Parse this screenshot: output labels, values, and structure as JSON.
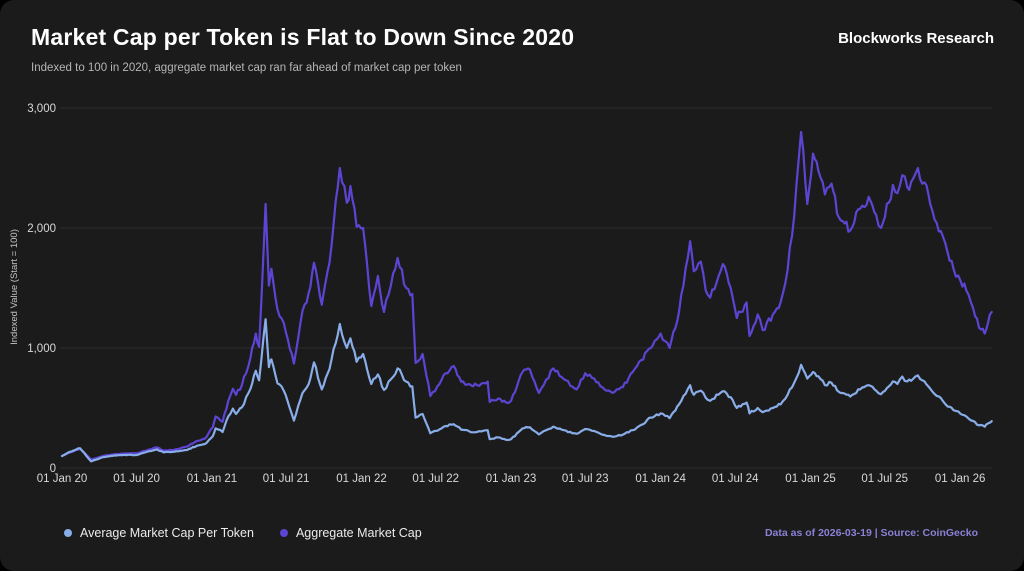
{
  "header": {
    "title": "Market Cap per Token is Flat to Down Since 2020",
    "subtitle": "Indexed to 100 in 2020, aggregate market cap ran far ahead of market cap per token",
    "brand": "Blockworks Research"
  },
  "footer": {
    "source_note": "Data as of 2026-03-19 | Source: CoinGecko"
  },
  "colors": {
    "background": "#1c1b1b",
    "title_text": "#ffffff",
    "subtitle_text": "#b5b5b5",
    "axis_text": "#d8d8d8",
    "gridline": "#2e2d2d",
    "average_line": "#88ade8",
    "aggregate_line": "#5d44d3",
    "source_text": "#8a80d6"
  },
  "chart_data": {
    "type": "line",
    "title": "Market Cap per Token is Flat to Down Since 2020",
    "subtitle": "Indexed to 100 in 2020, aggregate market cap ran far ahead of market cap per token",
    "xlabel": "",
    "ylabel": "Indexed Value (Start = 100)",
    "ylim": [
      0,
      3000
    ],
    "grid": "horizontal",
    "legend_position": "bottom-left",
    "yticks": [
      {
        "value": 0,
        "label": "0"
      },
      {
        "value": 1000,
        "label": "1,000"
      },
      {
        "value": 2000,
        "label": "2,000"
      },
      {
        "value": 3000,
        "label": "3,000"
      }
    ],
    "xticks": [
      {
        "date": "2020-01-01",
        "label": "01 Jan 20"
      },
      {
        "date": "2020-07-01",
        "label": "01 Jul 20"
      },
      {
        "date": "2021-01-01",
        "label": "01 Jan 21"
      },
      {
        "date": "2021-07-01",
        "label": "01 Jul 21"
      },
      {
        "date": "2022-01-01",
        "label": "01 Jan 22"
      },
      {
        "date": "2022-07-01",
        "label": "01 Jul 22"
      },
      {
        "date": "2023-01-01",
        "label": "01 Jan 23"
      },
      {
        "date": "2023-07-01",
        "label": "01 Jul 23"
      },
      {
        "date": "2024-01-01",
        "label": "01 Jan 24"
      },
      {
        "date": "2024-07-01",
        "label": "01 Jul 24"
      },
      {
        "date": "2025-01-01",
        "label": "01 Jan 25"
      },
      {
        "date": "2025-07-01",
        "label": "01 Jul 25"
      },
      {
        "date": "2026-01-01",
        "label": "01 Jan 26"
      }
    ],
    "x_dates": [
      "2020-01-01",
      "2020-01-20",
      "2020-02-14",
      "2020-03-12",
      "2020-04-10",
      "2020-05-08",
      "2020-06-01",
      "2020-07-01",
      "2020-08-01",
      "2020-08-20",
      "2020-09-05",
      "2020-10-01",
      "2020-11-01",
      "2020-11-25",
      "2020-12-15",
      "2021-01-03",
      "2021-01-10",
      "2021-01-27",
      "2021-02-10",
      "2021-02-21",
      "2021-03-01",
      "2021-03-15",
      "2021-04-05",
      "2021-04-18",
      "2021-04-26",
      "2021-05-12",
      "2021-05-20",
      "2021-05-26",
      "2021-06-10",
      "2021-06-25",
      "2021-07-20",
      "2021-08-10",
      "2021-08-25",
      "2021-09-07",
      "2021-09-26",
      "2021-10-15",
      "2021-11-09",
      "2021-11-26",
      "2021-12-05",
      "2021-12-20",
      "2022-01-05",
      "2022-01-25",
      "2022-02-10",
      "2022-02-25",
      "2022-03-30",
      "2022-04-20",
      "2022-05-05",
      "2022-05-13",
      "2022-05-30",
      "2022-06-18",
      "2022-07-05",
      "2022-07-25",
      "2022-08-14",
      "2022-09-01",
      "2022-09-21",
      "2022-10-10",
      "2022-11-05",
      "2022-11-10",
      "2022-12-01",
      "2022-12-20",
      "2023-01-01",
      "2023-01-29",
      "2023-02-16",
      "2023-03-10",
      "2023-04-14",
      "2023-05-10",
      "2023-06-10",
      "2023-07-01",
      "2023-07-23",
      "2023-08-17",
      "2023-09-11",
      "2023-10-01",
      "2023-10-25",
      "2023-11-15",
      "2023-12-08",
      "2024-01-01",
      "2024-01-23",
      "2024-02-15",
      "2024-03-13",
      "2024-03-22",
      "2024-04-08",
      "2024-04-20",
      "2024-05-01",
      "2024-06-01",
      "2024-06-20",
      "2024-07-05",
      "2024-07-29",
      "2024-08-05",
      "2024-08-25",
      "2024-09-06",
      "2024-10-01",
      "2024-10-20",
      "2024-11-06",
      "2024-11-22",
      "2024-12-09",
      "2024-12-24",
      "2025-01-07",
      "2025-01-20",
      "2025-02-05",
      "2025-02-21",
      "2025-03-11",
      "2025-04-08",
      "2025-05-02",
      "2025-05-23",
      "2025-06-10",
      "2025-06-22",
      "2025-07-11",
      "2025-07-21",
      "2025-08-01",
      "2025-08-13",
      "2025-08-25",
      "2025-09-08",
      "2025-09-20",
      "2025-10-06",
      "2025-10-20",
      "2025-11-05",
      "2025-11-20",
      "2025-12-02",
      "2025-12-16",
      "2026-01-02",
      "2026-01-16",
      "2026-02-02",
      "2026-02-16",
      "2026-03-02",
      "2026-03-10",
      "2026-03-19"
    ],
    "series": [
      {
        "name": "Average Market Cap Per Token",
        "color": "#88ade8",
        "values": [
          100,
          135,
          165,
          55,
          90,
          105,
          110,
          108,
          140,
          155,
          130,
          135,
          150,
          185,
          200,
          265,
          330,
          300,
          430,
          495,
          450,
          505,
          660,
          810,
          730,
          1240,
          840,
          905,
          705,
          645,
          395,
          625,
          700,
          880,
          655,
          825,
          1200,
          1000,
          1080,
          885,
          950,
          700,
          780,
          650,
          830,
          720,
          680,
          420,
          450,
          290,
          310,
          350,
          365,
          320,
          305,
          300,
          315,
          240,
          255,
          235,
          240,
          330,
          340,
          280,
          345,
          315,
          285,
          325,
          308,
          275,
          262,
          278,
          315,
          360,
          420,
          455,
          415,
          530,
          690,
          610,
          645,
          585,
          560,
          640,
          590,
          500,
          545,
          455,
          500,
          465,
          500,
          530,
          610,
          710,
          860,
          745,
          800,
          765,
          690,
          710,
          635,
          595,
          655,
          690,
          645,
          615,
          680,
          722,
          700,
          762,
          722,
          742,
          772,
          722,
          662,
          600,
          558,
          512,
          482,
          452,
          430,
          392,
          356,
          344,
          372,
          390
        ]
      },
      {
        "name": "Aggregate Market Cap",
        "color": "#5d44d3",
        "values": [
          100,
          130,
          160,
          70,
          100,
          115,
          120,
          122,
          155,
          172,
          145,
          152,
          178,
          225,
          245,
          340,
          430,
          385,
          560,
          660,
          610,
          690,
          920,
          1120,
          1010,
          2200,
          1520,
          1660,
          1320,
          1210,
          870,
          1310,
          1460,
          1710,
          1360,
          1710,
          2500,
          2210,
          2350,
          2010,
          2000,
          1350,
          1600,
          1300,
          1750,
          1500,
          1450,
          875,
          950,
          600,
          680,
          790,
          850,
          720,
          700,
          690,
          720,
          550,
          580,
          545,
          560,
          800,
          820,
          625,
          830,
          740,
          655,
          790,
          745,
          655,
          635,
          675,
          800,
          900,
          1000,
          1120,
          1000,
          1300,
          1890,
          1640,
          1720,
          1480,
          1420,
          1700,
          1500,
          1250,
          1380,
          1100,
          1280,
          1150,
          1280,
          1380,
          1650,
          2100,
          2800,
          2200,
          2620,
          2480,
          2280,
          2370,
          2090,
          1980,
          2160,
          2260,
          2110,
          2000,
          2210,
          2360,
          2290,
          2440,
          2340,
          2410,
          2500,
          2380,
          2200,
          2040,
          1930,
          1790,
          1660,
          1560,
          1480,
          1330,
          1170,
          1120,
          1210,
          1300
        ]
      }
    ]
  }
}
